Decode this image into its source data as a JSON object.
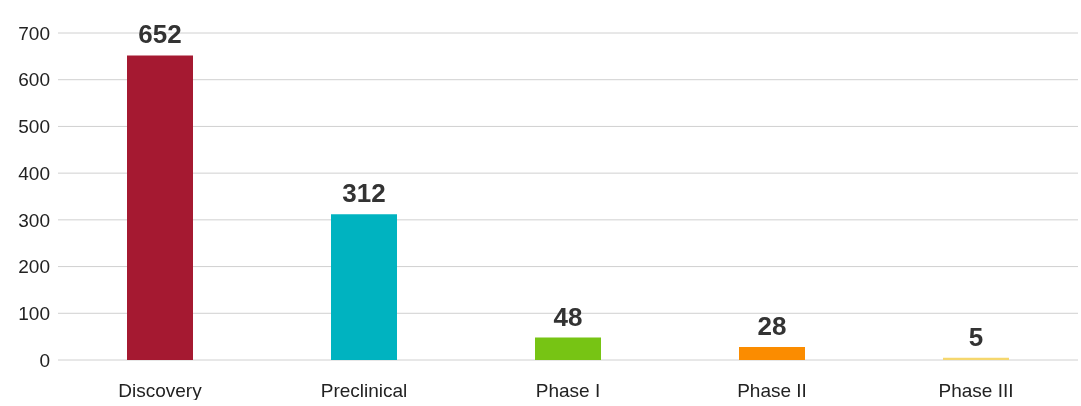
{
  "chart_data": {
    "type": "bar",
    "categories": [
      "Discovery",
      "Preclinical",
      "Phase I",
      "Phase II",
      "Phase III"
    ],
    "values": [
      652,
      312,
      48,
      28,
      5
    ],
    "colors": [
      "#a51931",
      "#00b3c0",
      "#77c414",
      "#fb8c00",
      "#f5d76e"
    ],
    "ylim": [
      0,
      700
    ],
    "yticks": [
      0,
      100,
      200,
      300,
      400,
      500,
      600,
      700
    ],
    "grid": "y",
    "data_labels": true
  }
}
